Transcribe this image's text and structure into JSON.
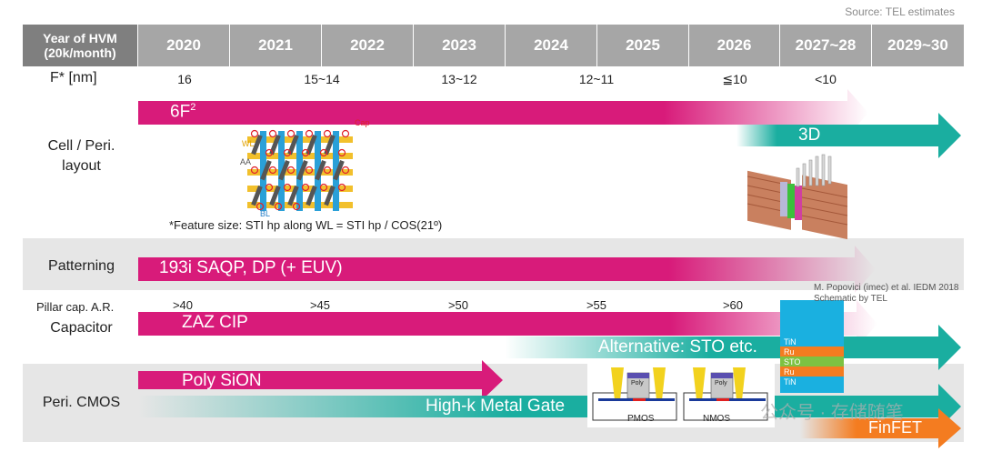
{
  "source": "Source: TEL estimates",
  "header": {
    "first": "Year of HVM (20k/month)",
    "years": [
      "2020",
      "2021",
      "2022",
      "2023",
      "2024",
      "2025",
      "2026",
      "2027~28",
      "2029~30"
    ]
  },
  "feature": {
    "label": "F* [nm]",
    "values": [
      "16",
      "15~14",
      "13~12",
      "12~11",
      "≦10",
      "<10"
    ]
  },
  "cell": {
    "label_line1": "Cell / Peri.",
    "label_line2": "layout",
    "bar_6f2": "6F",
    "bar_6f2_sup": "2",
    "bar_3d": "3D",
    "layout_labels": {
      "wl": "WL",
      "aa": "AA",
      "bl": "BL",
      "cap": "Cap"
    },
    "footnote": "*Feature size: STI hp along WL = STI hp / COS(21º)"
  },
  "patterning": {
    "label": "Patterning",
    "bar": "193i SAQP, DP (+ EUV)"
  },
  "capacitor": {
    "ar_label": "Pillar cap. A.R.",
    "label": "Capacitor",
    "ar_values": [
      ">40",
      ">45",
      ">50",
      ">55",
      ">60"
    ],
    "bar_main": "ZAZ CIP",
    "bar_alt": "Alternative: STO etc.",
    "credit_line1": "M. Popovici (imec) et al. IEDM 2018",
    "credit_line2": "Schematic by TEL",
    "stack": [
      "TiN",
      "Ru",
      "STO",
      "Ru",
      "TiN"
    ]
  },
  "cmos": {
    "label": "Peri. CMOS",
    "bar_poly": "Poly SiON",
    "bar_hkmg": "High-k Metal Gate",
    "bar_finfet": "FinFET",
    "pmos": "PMOS",
    "nmos": "NMOS",
    "gate_label": "Poly",
    "watermark": "公众号 · 存储随笔"
  },
  "colors": {
    "magenta": "#d81b7a",
    "teal": "#1aaea0",
    "orange": "#f47c20",
    "header": "#a6a6a6"
  }
}
